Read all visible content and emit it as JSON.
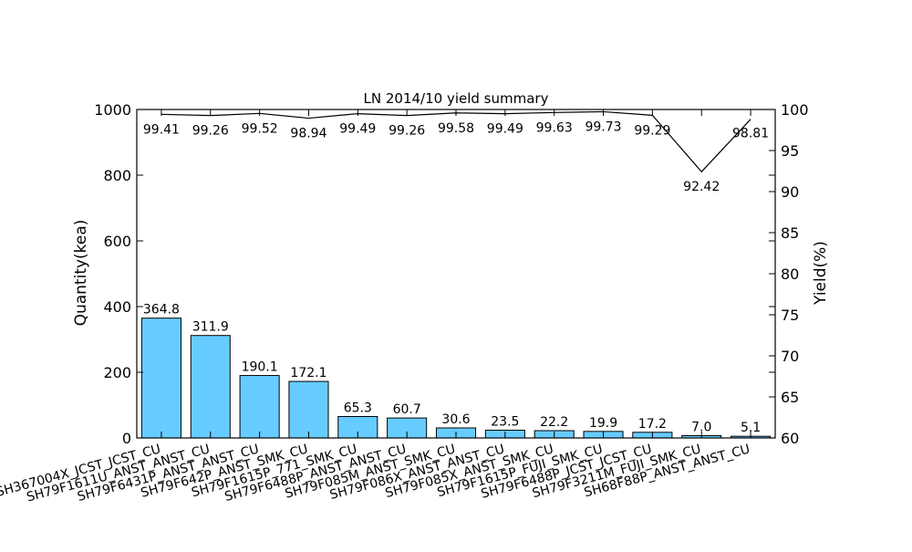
{
  "chart_data": {
    "type": "bar",
    "title": "LN 2014/10 yield summary",
    "categories": [
      "SH367004X_JCST_JCST_CU",
      "SH79F1611U_ANST_ANST_CU",
      "SH79F6431P_ANST_ANST_CU",
      "SH79F642P_ANST_SMK_CU",
      "SH79F1615P_771_SMK_CU",
      "SH79F6488P_ANST_ANST_CU",
      "SH79F085M_ANST_SMK_CU",
      "SH79F086X_ANST_ANST_CU",
      "SH79F085X_ANST_SMK_CU",
      "SH79F1615P_FUJI_SMK_CU",
      "SH79F6488P_JCST_JCST_CU",
      "SH79F3211M_FUJI_SMK_CU",
      "SH68F88P_ANST_ANST_CU"
    ],
    "series": [
      {
        "type": "bar",
        "axis": "left",
        "values": [
          364.8,
          311.9,
          190.1,
          172.1,
          65.3,
          60.7,
          30.6,
          23.5,
          22.2,
          19.9,
          17.2,
          7.0,
          5.1
        ],
        "labels": [
          "364.8",
          "311.9",
          "190.1",
          "172.1",
          "65.3",
          "60.7",
          "30.6",
          "23.5",
          "22.2",
          "19.9",
          "17.2",
          "7.0",
          "5.1"
        ],
        "color": "#66ccff"
      },
      {
        "type": "line",
        "axis": "right",
        "values": [
          99.41,
          99.26,
          99.52,
          98.94,
          99.49,
          99.26,
          99.58,
          99.49,
          99.63,
          99.73,
          99.29,
          92.42,
          98.81
        ],
        "labels": [
          "99.41",
          "99.26",
          "99.52",
          "98.94",
          "99.49",
          "99.26",
          "99.58",
          "99.49",
          "99.63",
          "99.73",
          "99.29",
          "92.42",
          "98.81"
        ],
        "color": "#000000"
      }
    ],
    "ylabel": "Quantity(kea)",
    "ylim": [
      0,
      1000
    ],
    "yticks": [
      "0",
      "200",
      "400",
      "600",
      "800",
      "1000"
    ],
    "y2label": "Yield(%)",
    "y2lim": [
      60,
      100
    ],
    "y2ticks": [
      "60",
      "65",
      "70",
      "75",
      "80",
      "85",
      "90",
      "95",
      "100"
    ],
    "grid": false,
    "legend": "none"
  }
}
